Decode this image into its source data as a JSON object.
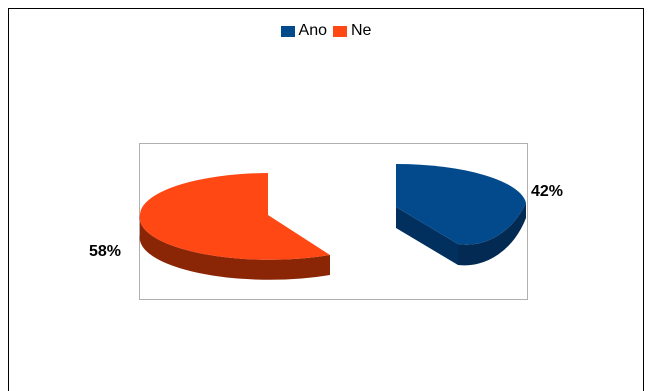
{
  "chart_data": {
    "type": "pie",
    "title": "",
    "legend_position": "top",
    "exploded": true,
    "three_d": true,
    "categories": [
      "Ano",
      "Ne"
    ],
    "values": [
      42,
      58
    ],
    "value_labels": [
      "42%",
      "58%"
    ],
    "colors": {
      "Ano": "#034a8c",
      "Ano_side": "#022a52",
      "Ne": "#ff4813",
      "Ne_side": "#8a2505"
    }
  }
}
